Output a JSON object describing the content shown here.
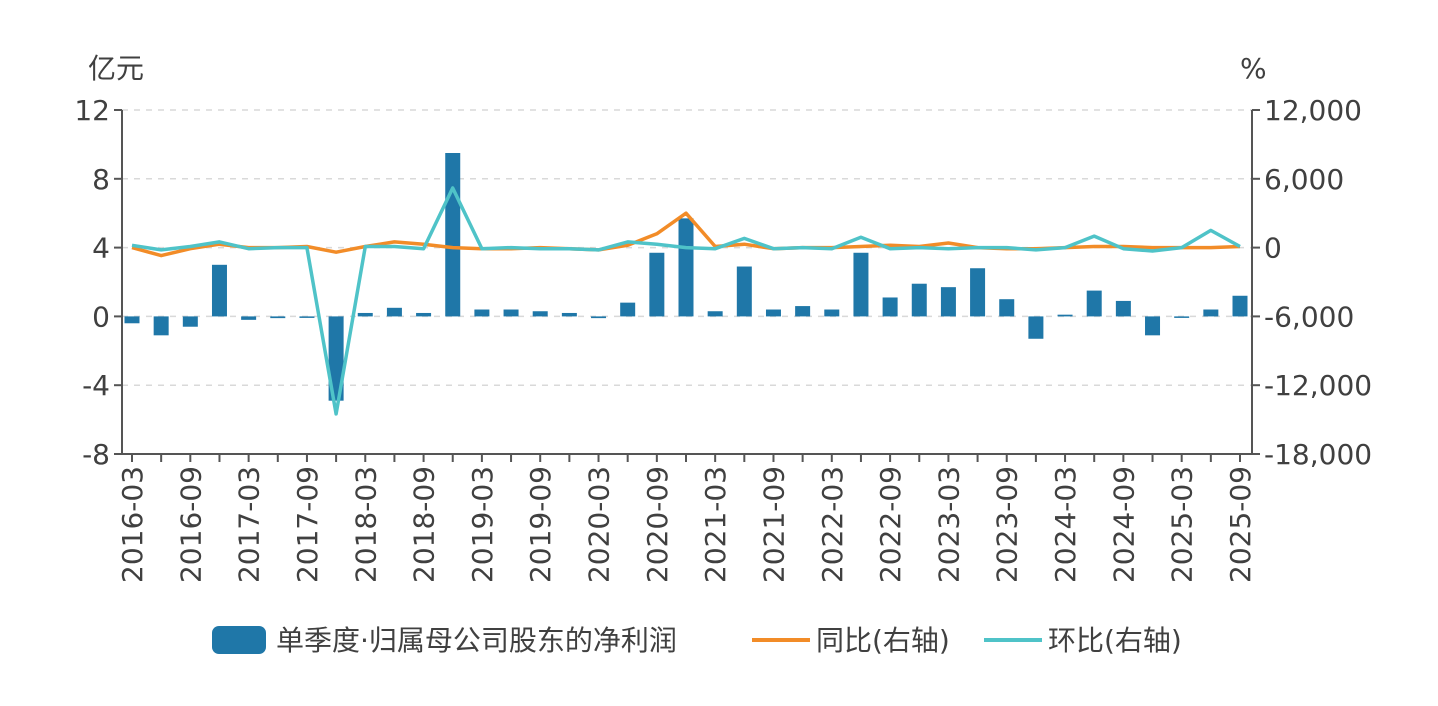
{
  "chart_data": {
    "type": "bar+line",
    "left_unit": "亿元",
    "right_unit": "%",
    "y_left": {
      "min": -8,
      "max": 12,
      "ticks": [
        12,
        8,
        4,
        0,
        -4,
        -8
      ]
    },
    "y_right": {
      "min": -18000,
      "max": 12000,
      "ticks": [
        12000,
        6000,
        0,
        -6000,
        -12000,
        -18000
      ],
      "tick_labels": [
        "12,000",
        "6,000",
        "0",
        "-6,000",
        "-12,000",
        "-18,000"
      ]
    },
    "grid": "horizontal-dashed",
    "legend_placement": "bottom",
    "categories": [
      "2016-03",
      "2016-06",
      "2016-09",
      "2016-12",
      "2017-03",
      "2017-06",
      "2017-09",
      "2017-12",
      "2018-03",
      "2018-06",
      "2018-09",
      "2018-12",
      "2019-03",
      "2019-06",
      "2019-09",
      "2019-12",
      "2020-03",
      "2020-06",
      "2020-09",
      "2020-12",
      "2021-03",
      "2021-06",
      "2021-09",
      "2021-12",
      "2022-03",
      "2022-06",
      "2022-09",
      "2022-12",
      "2023-03",
      "2023-06",
      "2023-09",
      "2023-12",
      "2024-03",
      "2024-06",
      "2024-09",
      "2024-12",
      "2025-03",
      "2025-06",
      "2025-09"
    ],
    "xtick_labels": [
      "2016-03",
      "2016-09",
      "2017-03",
      "2017-09",
      "2018-03",
      "2018-09",
      "2019-03",
      "2019-09",
      "2020-03",
      "2020-09",
      "2021-03",
      "2021-09",
      "2022-03",
      "2022-09",
      "2023-03",
      "2023-09",
      "2024-03",
      "2024-09",
      "2025-03",
      "2025-09"
    ],
    "series": [
      {
        "name": "单季度·归属母公司股东的净利润",
        "type": "bar",
        "axis": "left",
        "color": "#1f77a8",
        "values": [
          -0.4,
          -1.1,
          -0.6,
          3.0,
          -0.2,
          -0.1,
          0.0,
          -4.9,
          0.2,
          0.5,
          0.2,
          9.5,
          0.4,
          0.4,
          0.3,
          0.2,
          -0.1,
          0.8,
          3.7,
          5.7,
          0.3,
          2.9,
          0.4,
          0.6,
          0.4,
          3.7,
          1.1,
          1.9,
          1.7,
          2.8,
          1.0,
          -1.3,
          0.1,
          1.5,
          0.9,
          -1.1,
          0.0,
          0.4,
          1.2
        ]
      },
      {
        "name": "同比(右轴)",
        "type": "line",
        "axis": "right",
        "color": "#f28c28",
        "values": [
          0,
          -700,
          -100,
          300,
          0,
          0,
          100,
          -400,
          100,
          500,
          300,
          0,
          -100,
          -100,
          0,
          -100,
          -200,
          200,
          1200,
          3000,
          100,
          300,
          -100,
          0,
          0,
          100,
          200,
          100,
          400,
          0,
          -100,
          -100,
          0,
          100,
          100,
          0,
          0,
          0,
          100
        ]
      },
      {
        "name": "环比(右轴)",
        "type": "line",
        "axis": "right",
        "color": "#4fc3c8",
        "values": [
          200,
          -200,
          100,
          500,
          -100,
          0,
          0,
          -14500,
          100,
          100,
          -100,
          5200,
          -100,
          0,
          -100,
          -100,
          -200,
          500,
          300,
          0,
          -100,
          800,
          -100,
          0,
          -100,
          900,
          -100,
          0,
          -100,
          0,
          0,
          -200,
          0,
          1000,
          -100,
          -300,
          0,
          1500,
          100
        ]
      }
    ]
  }
}
